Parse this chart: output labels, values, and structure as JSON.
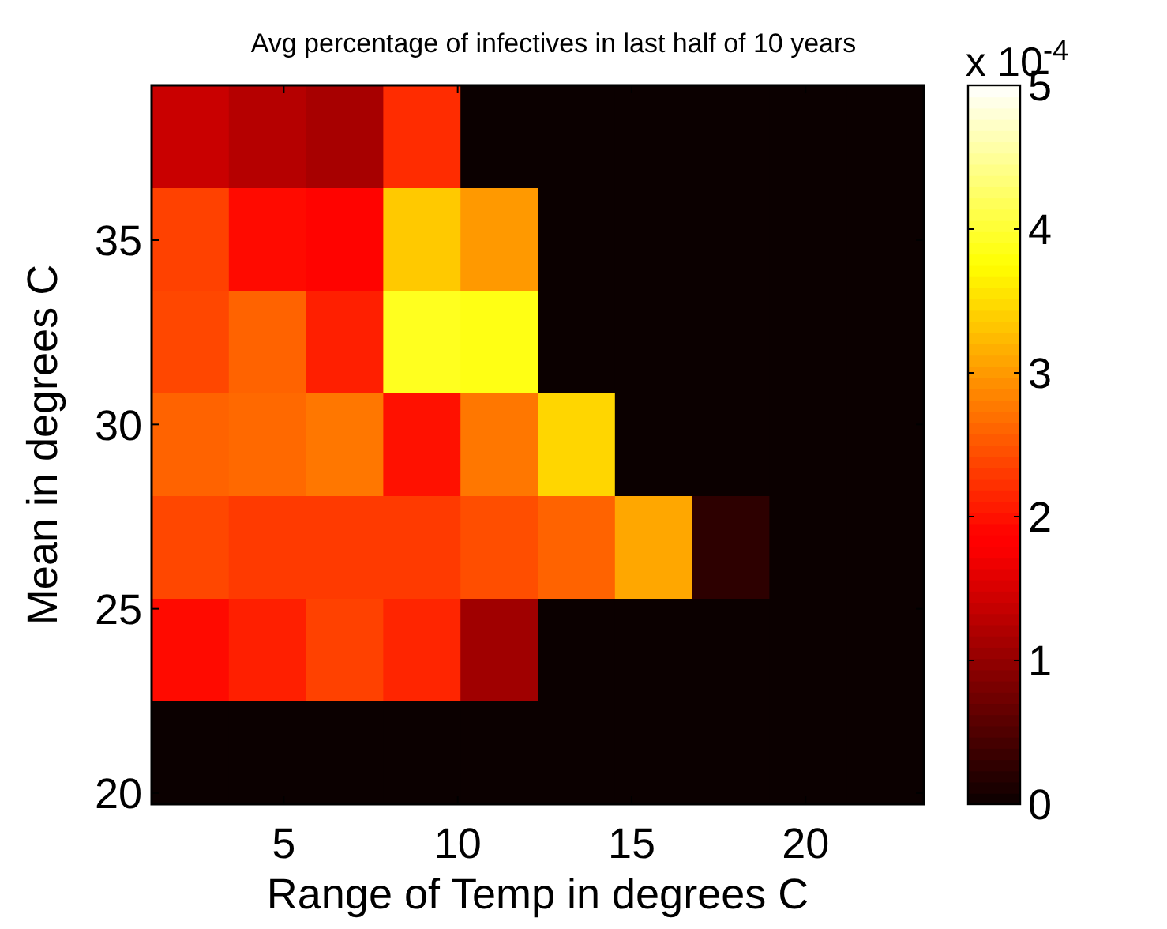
{
  "chart_data": {
    "type": "heatmap",
    "title": "Avg percentage of infectives in last half of 10 years",
    "xlabel": "Range of Temp in degrees C",
    "ylabel": "Mean in degrees C",
    "clabel": "x 10$^{-4}$",
    "xlim": [
      1.2,
      23.4
    ],
    "xticks": [
      5,
      10,
      15,
      20
    ],
    "ylim": [
      19.7,
      39.2
    ],
    "yticks": [
      20,
      25,
      30,
      35
    ],
    "clim": [
      0,
      5
    ],
    "cticks": [
      0,
      1,
      2,
      3,
      4,
      5
    ],
    "cells": [
      [
        1.4,
        1.25,
        1.15,
        2.2,
        0,
        0,
        0,
        0,
        0,
        0
      ],
      [
        2.35,
        1.95,
        1.9,
        3.35,
        3.0,
        0,
        0,
        0,
        0,
        0
      ],
      [
        2.4,
        2.6,
        2.1,
        3.9,
        3.85,
        0,
        0,
        0,
        0,
        0
      ],
      [
        2.6,
        2.65,
        2.75,
        2.0,
        2.75,
        3.45,
        0,
        0,
        0,
        0
      ],
      [
        2.4,
        2.3,
        2.3,
        2.3,
        2.45,
        2.6,
        3.1,
        0.25,
        0,
        0
      ],
      [
        1.95,
        2.1,
        2.35,
        2.15,
        1.1,
        0,
        0,
        0,
        0,
        0
      ],
      [
        0,
        0,
        0,
        0,
        0,
        0,
        0,
        0,
        0,
        0
      ]
    ]
  }
}
